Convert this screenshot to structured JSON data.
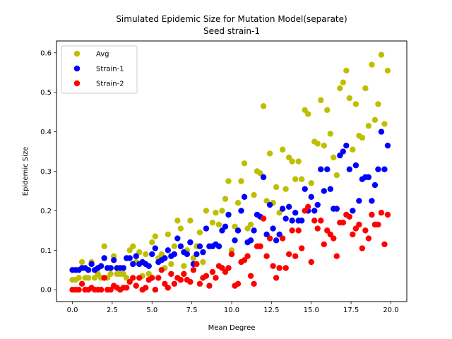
{
  "chart_data": {
    "type": "scatter",
    "title": "Simulated Epidemic Size for Mutation Model(separate)",
    "subtitle": "Seed strain-1",
    "xlabel": "Mean Degree",
    "ylabel": "Epidemic Size",
    "xlim": [
      -1.0,
      21.0
    ],
    "ylim": [
      -0.03,
      0.63
    ],
    "xticks": [
      0.0,
      2.5,
      5.0,
      7.5,
      10.0,
      12.5,
      15.0,
      17.5,
      20.0
    ],
    "xtick_labels": [
      "0.0",
      "2.5",
      "5.0",
      "7.5",
      "10.0",
      "12.5",
      "15.0",
      "17.5",
      "20.0"
    ],
    "yticks": [
      0.0,
      0.1,
      0.2,
      0.3,
      0.4,
      0.5,
      0.6
    ],
    "ytick_labels": [
      "0.0",
      "0.1",
      "0.2",
      "0.3",
      "0.4",
      "0.5",
      "0.6"
    ],
    "grid": false,
    "legend_position": "top-left",
    "series": [
      {
        "name": "Avg",
        "color": "#bfbf00",
        "points": [
          [
            0.0,
            0.025
          ],
          [
            0.2,
            0.025
          ],
          [
            0.4,
            0.03
          ],
          [
            0.6,
            0.07
          ],
          [
            0.8,
            0.03
          ],
          [
            1.0,
            0.03
          ],
          [
            1.2,
            0.07
          ],
          [
            1.4,
            0.03
          ],
          [
            1.6,
            0.04
          ],
          [
            1.8,
            0.03
          ],
          [
            2.0,
            0.11
          ],
          [
            2.2,
            0.03
          ],
          [
            2.4,
            0.04
          ],
          [
            2.6,
            0.085
          ],
          [
            2.8,
            0.04
          ],
          [
            3.0,
            0.04
          ],
          [
            3.2,
            0.04
          ],
          [
            3.4,
            0.03
          ],
          [
            3.6,
            0.1
          ],
          [
            3.8,
            0.11
          ],
          [
            4.0,
            0.07
          ],
          [
            4.2,
            0.095
          ],
          [
            4.4,
            0.035
          ],
          [
            4.6,
            0.09
          ],
          [
            4.8,
            0.04
          ],
          [
            5.0,
            0.12
          ],
          [
            5.2,
            0.135
          ],
          [
            5.4,
            0.08
          ],
          [
            5.6,
            0.09
          ],
          [
            5.8,
            0.055
          ],
          [
            6.0,
            0.14
          ],
          [
            6.2,
            0.065
          ],
          [
            6.4,
            0.11
          ],
          [
            6.6,
            0.175
          ],
          [
            6.8,
            0.155
          ],
          [
            7.0,
            0.06
          ],
          [
            7.2,
            0.1
          ],
          [
            7.4,
            0.175
          ],
          [
            7.6,
            0.08
          ],
          [
            7.8,
            0.11
          ],
          [
            8.0,
            0.145
          ],
          [
            8.2,
            0.07
          ],
          [
            8.4,
            0.2
          ],
          [
            8.6,
            0.11
          ],
          [
            8.8,
            0.17
          ],
          [
            9.0,
            0.195
          ],
          [
            9.2,
            0.165
          ],
          [
            9.4,
            0.2
          ],
          [
            9.6,
            0.23
          ],
          [
            9.8,
            0.275
          ],
          [
            10.0,
            0.1
          ],
          [
            10.2,
            0.16
          ],
          [
            10.4,
            0.22
          ],
          [
            10.6,
            0.275
          ],
          [
            10.8,
            0.32
          ],
          [
            11.0,
            0.155
          ],
          [
            11.2,
            0.165
          ],
          [
            11.4,
            0.24
          ],
          [
            11.6,
            0.3
          ],
          [
            11.8,
            0.295
          ],
          [
            12.0,
            0.465
          ],
          [
            12.2,
            0.225
          ],
          [
            12.4,
            0.345
          ],
          [
            12.6,
            0.22
          ],
          [
            12.8,
            0.26
          ],
          [
            13.0,
            0.195
          ],
          [
            13.2,
            0.355
          ],
          [
            13.4,
            0.255
          ],
          [
            13.6,
            0.335
          ],
          [
            13.8,
            0.325
          ],
          [
            14.0,
            0.28
          ],
          [
            14.2,
            0.325
          ],
          [
            14.4,
            0.28
          ],
          [
            14.6,
            0.455
          ],
          [
            14.8,
            0.445
          ],
          [
            15.0,
            0.27
          ],
          [
            15.2,
            0.375
          ],
          [
            15.4,
            0.37
          ],
          [
            15.6,
            0.48
          ],
          [
            15.8,
            0.365
          ],
          [
            16.0,
            0.455
          ],
          [
            16.2,
            0.395
          ],
          [
            16.4,
            0.335
          ],
          [
            16.6,
            0.29
          ],
          [
            16.8,
            0.51
          ],
          [
            17.0,
            0.525
          ],
          [
            17.2,
            0.555
          ],
          [
            17.4,
            0.485
          ],
          [
            17.6,
            0.355
          ],
          [
            17.8,
            0.47
          ],
          [
            18.0,
            0.39
          ],
          [
            18.2,
            0.385
          ],
          [
            18.4,
            0.51
          ],
          [
            18.6,
            0.415
          ],
          [
            18.8,
            0.57
          ],
          [
            19.0,
            0.43
          ],
          [
            19.2,
            0.47
          ],
          [
            19.4,
            0.595
          ],
          [
            19.6,
            0.42
          ],
          [
            19.8,
            0.555
          ]
        ]
      },
      {
        "name": "Strain-1",
        "color": "#0000ff",
        "points": [
          [
            0.0,
            0.05
          ],
          [
            0.2,
            0.05
          ],
          [
            0.4,
            0.05
          ],
          [
            0.6,
            0.055
          ],
          [
            0.8,
            0.055
          ],
          [
            1.0,
            0.05
          ],
          [
            1.2,
            0.065
          ],
          [
            1.4,
            0.05
          ],
          [
            1.6,
            0.055
          ],
          [
            1.8,
            0.06
          ],
          [
            2.0,
            0.08
          ],
          [
            2.2,
            0.055
          ],
          [
            2.4,
            0.055
          ],
          [
            2.6,
            0.075
          ],
          [
            2.8,
            0.055
          ],
          [
            3.0,
            0.055
          ],
          [
            3.2,
            0.055
          ],
          [
            3.4,
            0.08
          ],
          [
            3.6,
            0.08
          ],
          [
            3.8,
            0.065
          ],
          [
            4.0,
            0.085
          ],
          [
            4.2,
            0.065
          ],
          [
            4.4,
            0.07
          ],
          [
            4.6,
            0.065
          ],
          [
            4.8,
            0.06
          ],
          [
            5.0,
            0.09
          ],
          [
            5.2,
            0.105
          ],
          [
            5.4,
            0.07
          ],
          [
            5.6,
            0.075
          ],
          [
            5.8,
            0.08
          ],
          [
            6.0,
            0.1
          ],
          [
            6.2,
            0.085
          ],
          [
            6.4,
            0.09
          ],
          [
            6.6,
            0.13
          ],
          [
            6.8,
            0.11
          ],
          [
            7.0,
            0.095
          ],
          [
            7.2,
            0.09
          ],
          [
            7.4,
            0.12
          ],
          [
            7.6,
            0.065
          ],
          [
            7.8,
            0.09
          ],
          [
            8.0,
            0.11
          ],
          [
            8.2,
            0.095
          ],
          [
            8.4,
            0.155
          ],
          [
            8.6,
            0.11
          ],
          [
            8.8,
            0.11
          ],
          [
            9.0,
            0.115
          ],
          [
            9.2,
            0.11
          ],
          [
            9.4,
            0.15
          ],
          [
            9.6,
            0.16
          ],
          [
            9.8,
            0.19
          ],
          [
            10.0,
            0.09
          ],
          [
            10.2,
            0.125
          ],
          [
            10.4,
            0.15
          ],
          [
            10.6,
            0.2
          ],
          [
            10.8,
            0.235
          ],
          [
            11.0,
            0.12
          ],
          [
            11.2,
            0.125
          ],
          [
            11.4,
            0.15
          ],
          [
            11.6,
            0.19
          ],
          [
            11.8,
            0.185
          ],
          [
            12.0,
            0.285
          ],
          [
            12.2,
            0.14
          ],
          [
            12.4,
            0.215
          ],
          [
            12.6,
            0.155
          ],
          [
            12.8,
            0.125
          ],
          [
            13.0,
            0.14
          ],
          [
            13.2,
            0.205
          ],
          [
            13.4,
            0.18
          ],
          [
            13.6,
            0.21
          ],
          [
            13.8,
            0.175
          ],
          [
            14.0,
            0.195
          ],
          [
            14.2,
            0.175
          ],
          [
            14.4,
            0.175
          ],
          [
            14.6,
            0.255
          ],
          [
            14.8,
            0.2
          ],
          [
            15.0,
            0.235
          ],
          [
            15.2,
            0.2
          ],
          [
            15.4,
            0.215
          ],
          [
            15.6,
            0.305
          ],
          [
            15.8,
            0.25
          ],
          [
            16.0,
            0.305
          ],
          [
            16.2,
            0.255
          ],
          [
            16.4,
            0.205
          ],
          [
            16.6,
            0.205
          ],
          [
            16.8,
            0.34
          ],
          [
            17.0,
            0.35
          ],
          [
            17.2,
            0.365
          ],
          [
            17.4,
            0.305
          ],
          [
            17.6,
            0.2
          ],
          [
            17.8,
            0.315
          ],
          [
            18.0,
            0.225
          ],
          [
            18.2,
            0.28
          ],
          [
            18.4,
            0.285
          ],
          [
            18.6,
            0.285
          ],
          [
            18.8,
            0.225
          ],
          [
            19.0,
            0.265
          ],
          [
            19.2,
            0.305
          ],
          [
            19.4,
            0.4
          ],
          [
            19.6,
            0.305
          ],
          [
            19.8,
            0.365
          ]
        ]
      },
      {
        "name": "Strain-2",
        "color": "#ff0000",
        "points": [
          [
            0.0,
            0.0
          ],
          [
            0.2,
            0.0
          ],
          [
            0.4,
            0.0
          ],
          [
            0.6,
            0.015
          ],
          [
            0.8,
            0.0
          ],
          [
            1.0,
            0.0
          ],
          [
            1.2,
            0.005
          ],
          [
            1.4,
            0.0
          ],
          [
            1.6,
            0.0
          ],
          [
            1.8,
            0.0
          ],
          [
            2.0,
            0.03
          ],
          [
            2.2,
            0.0
          ],
          [
            2.4,
            0.0
          ],
          [
            2.6,
            0.01
          ],
          [
            2.8,
            0.005
          ],
          [
            3.0,
            0.0
          ],
          [
            3.2,
            0.005
          ],
          [
            3.4,
            0.005
          ],
          [
            3.6,
            0.02
          ],
          [
            3.8,
            0.03
          ],
          [
            4.0,
            0.01
          ],
          [
            4.2,
            0.03
          ],
          [
            4.4,
            0.0
          ],
          [
            4.6,
            0.005
          ],
          [
            4.8,
            0.025
          ],
          [
            5.0,
            0.03
          ],
          [
            5.2,
            0.0
          ],
          [
            5.4,
            0.03
          ],
          [
            5.6,
            0.05
          ],
          [
            5.8,
            0.015
          ],
          [
            6.0,
            0.005
          ],
          [
            6.2,
            0.04
          ],
          [
            6.4,
            0.015
          ],
          [
            6.6,
            0.03
          ],
          [
            6.8,
            0.025
          ],
          [
            7.0,
            0.04
          ],
          [
            7.2,
            0.025
          ],
          [
            7.4,
            0.02
          ],
          [
            7.6,
            0.05
          ],
          [
            7.8,
            0.065
          ],
          [
            8.0,
            0.015
          ],
          [
            8.2,
            0.03
          ],
          [
            8.4,
            0.035
          ],
          [
            8.6,
            0.01
          ],
          [
            8.8,
            0.045
          ],
          [
            9.0,
            0.03
          ],
          [
            9.2,
            0.06
          ],
          [
            9.4,
            0.055
          ],
          [
            9.6,
            0.045
          ],
          [
            9.8,
            0.055
          ],
          [
            10.0,
            0.09
          ],
          [
            10.2,
            0.01
          ],
          [
            10.4,
            0.015
          ],
          [
            10.6,
            0.07
          ],
          [
            10.8,
            0.075
          ],
          [
            11.0,
            0.085
          ],
          [
            11.2,
            0.035
          ],
          [
            11.4,
            0.015
          ],
          [
            11.6,
            0.11
          ],
          [
            11.8,
            0.11
          ],
          [
            12.0,
            0.18
          ],
          [
            12.2,
            0.085
          ],
          [
            12.4,
            0.13
          ],
          [
            12.6,
            0.06
          ],
          [
            12.8,
            0.03
          ],
          [
            13.0,
            0.055
          ],
          [
            13.2,
            0.13
          ],
          [
            13.4,
            0.055
          ],
          [
            13.6,
            0.09
          ],
          [
            13.8,
            0.15
          ],
          [
            14.0,
            0.085
          ],
          [
            14.2,
            0.15
          ],
          [
            14.4,
            0.105
          ],
          [
            14.6,
            0.2
          ],
          [
            14.8,
            0.21
          ],
          [
            15.0,
            0.07
          ],
          [
            15.2,
            0.175
          ],
          [
            15.4,
            0.155
          ],
          [
            15.6,
            0.175
          ],
          [
            15.8,
            0.115
          ],
          [
            16.0,
            0.15
          ],
          [
            16.2,
            0.14
          ],
          [
            16.4,
            0.13
          ],
          [
            16.6,
            0.085
          ],
          [
            16.8,
            0.17
          ],
          [
            17.0,
            0.17
          ],
          [
            17.2,
            0.19
          ],
          [
            17.4,
            0.185
          ],
          [
            17.6,
            0.14
          ],
          [
            17.8,
            0.155
          ],
          [
            18.0,
            0.165
          ],
          [
            18.2,
            0.105
          ],
          [
            18.4,
            0.15
          ],
          [
            18.6,
            0.13
          ],
          [
            18.8,
            0.19
          ],
          [
            19.0,
            0.165
          ],
          [
            19.2,
            0.165
          ],
          [
            19.4,
            0.195
          ],
          [
            19.6,
            0.115
          ],
          [
            19.8,
            0.19
          ]
        ]
      }
    ]
  }
}
